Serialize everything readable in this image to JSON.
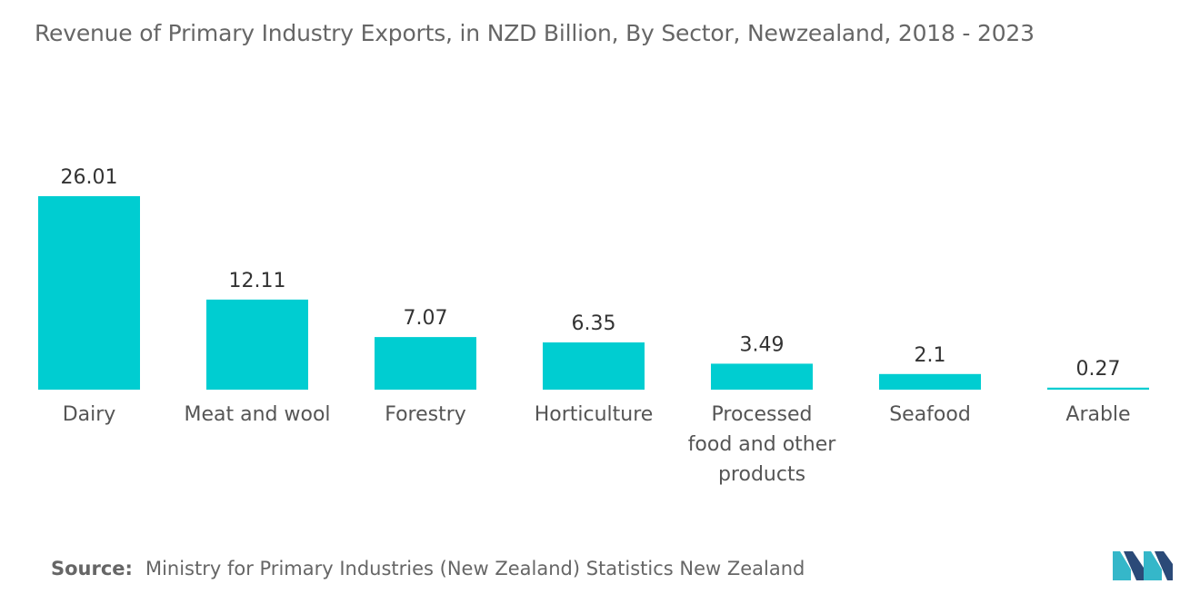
{
  "title": "Revenue of Primary Industry Exports, in NZD Billion, By Sector, Newzealand, 2018 - 2023",
  "source": {
    "label": "Source:",
    "text": "Ministry for Primary Industries (New Zealand) Statistics New Zealand"
  },
  "logo": {
    "icon": "mordor-intelligence-logo-icon",
    "colors": [
      "#2b4a78",
      "#35b7c9"
    ]
  },
  "chart_data": {
    "type": "bar",
    "categories": [
      "Dairy",
      "Meat and wool",
      "Forestry",
      "Horticulture",
      "Processed food and other products",
      "Seafood",
      "Arable"
    ],
    "category_label_lines": [
      [
        "Dairy"
      ],
      [
        "Meat and wool"
      ],
      [
        "Forestry"
      ],
      [
        "Horticulture"
      ],
      [
        "Processed",
        "food and other",
        "products"
      ],
      [
        "Seafood"
      ],
      [
        "Arable"
      ]
    ],
    "values": [
      26.01,
      12.11,
      7.07,
      6.35,
      3.49,
      2.1,
      0.27
    ],
    "value_labels": [
      "26.01",
      "12.11",
      "7.07",
      "6.35",
      "3.49",
      "2.1",
      "0.27"
    ],
    "xlabel": "",
    "ylabel": "",
    "ylim": [
      0,
      26.01
    ],
    "grid": false,
    "legend": "none",
    "bar_color": "#00cdd1"
  }
}
